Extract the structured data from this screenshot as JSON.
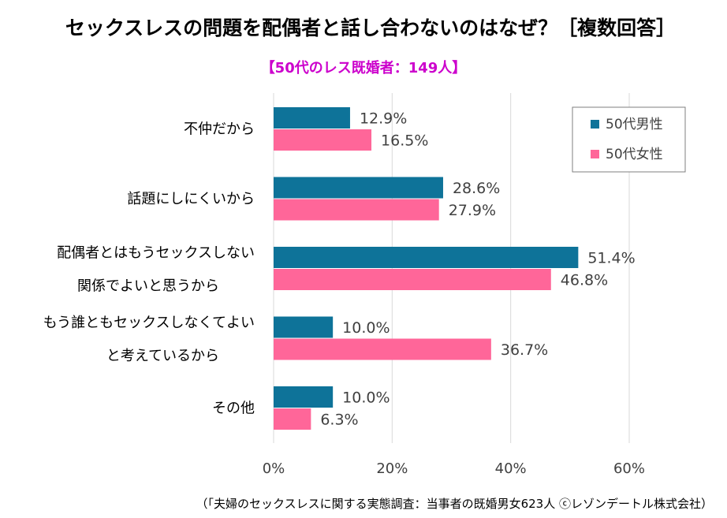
{
  "title": "セックスレスの問題を配偶者と話し合わないのはなぜ？［複数回答］",
  "subtitle": "【50代のレス既婚者：149人】",
  "source": "（「夫婦のセックスレスに関する実態調査：当事者の既婚男女623人 ⓒレゾンデートル株式会社）",
  "colors": {
    "male": "#0e7399",
    "female": "#ff6699",
    "grid": "#d9d9d9"
  },
  "chart_data": {
    "type": "bar",
    "orientation": "horizontal",
    "categories": [
      [
        "不仲だから"
      ],
      [
        "話題にしにくいから"
      ],
      [
        "配偶者とはもうセックスしない",
        "関係でよいと思うから"
      ],
      [
        "もう誰ともセックスしなくてよい",
        "と考えているから"
      ],
      [
        "その他"
      ]
    ],
    "series": [
      {
        "name": "50代男性",
        "values": [
          12.9,
          28.6,
          51.4,
          10.0,
          10.0
        ]
      },
      {
        "name": "50代女性",
        "values": [
          16.5,
          27.9,
          46.8,
          36.7,
          6.3
        ]
      }
    ],
    "xlim": [
      0,
      60
    ],
    "xticks": [
      0,
      20,
      40,
      60
    ],
    "tick_suffix": "%",
    "value_suffix": "%",
    "grid": true,
    "legend_position": "top-right"
  }
}
